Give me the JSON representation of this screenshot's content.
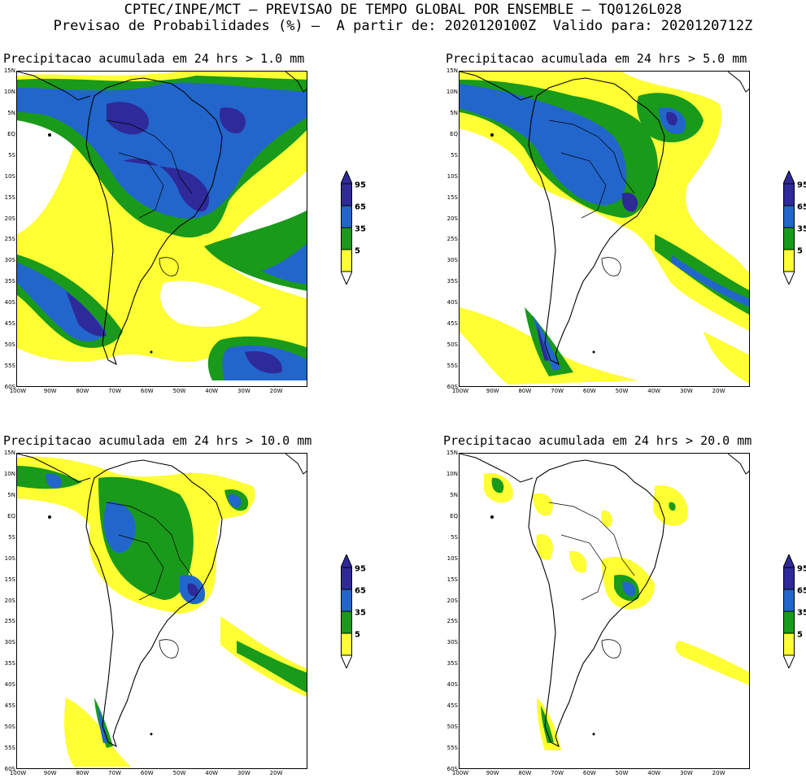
{
  "header": {
    "title_line1": "CPTEC/INPE/MCT — PREVISAO DE TEMPO GLOBAL POR ENSEMBLE — TQ0126L028",
    "title_line2": "Previsao de Probabilidades (%) —  A partir de: 2020120100Z  Valido para: 2020120712Z"
  },
  "colors": {
    "c5": "#ffff33",
    "c35": "#1a9a1a",
    "c65": "#2266cc",
    "c95": "#2e2a9a",
    "land": "#000000"
  },
  "colorbar": {
    "labels": [
      "95",
      "65",
      "35",
      "5"
    ]
  },
  "axes": {
    "lat_labels": [
      "15N",
      "10N",
      "5N",
      "EQ",
      "5S",
      "10S",
      "15S",
      "20S",
      "25S",
      "30S",
      "35S",
      "40S",
      "45S",
      "50S",
      "55S",
      "60S"
    ],
    "lon_labels": [
      "100W",
      "90W",
      "80W",
      "70W",
      "60W",
      "50W",
      "40W",
      "30W",
      "20W"
    ]
  },
  "panels": [
    {
      "id": "p1",
      "title": "Precipitacao acumulada em 24 hrs > 1.0 mm",
      "threshold_mm": 1.0
    },
    {
      "id": "p2",
      "title": "Precipitacao acumulada em 24 hrs > 5.0 mm",
      "threshold_mm": 5.0
    },
    {
      "id": "p3",
      "title": "Precipitacao acumulada em 24 hrs > 10.0 mm",
      "threshold_mm": 10.0
    },
    {
      "id": "p4",
      "title": "Precipitacao acumulada em 24 hrs > 20.0 mm",
      "threshold_mm": 20.0
    }
  ]
}
